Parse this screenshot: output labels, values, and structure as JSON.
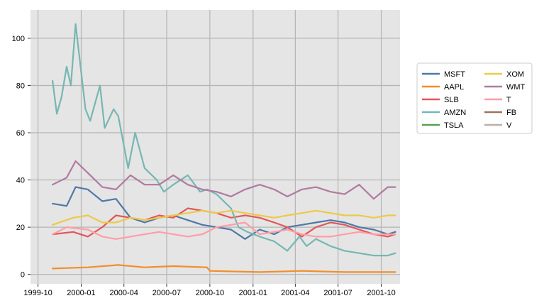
{
  "chart_data": {
    "type": "line",
    "title": "",
    "xlabel": "",
    "ylabel": "",
    "x_ticks": [
      "1999-10",
      "2000-01",
      "2000-04",
      "2000-07",
      "2000-10",
      "2001-01",
      "2001-04",
      "2001-07",
      "2001-10"
    ],
    "y_ticks": [
      0,
      20,
      40,
      60,
      80,
      100
    ],
    "xlim": [
      "1999-09-15",
      "2001-11-10"
    ],
    "ylim": [
      -4,
      112
    ],
    "grid": true,
    "legend": {
      "placement": "right",
      "columns": 2
    },
    "series": [
      {
        "name": "MSFT",
        "color": "#4e79a7",
        "x": [
          "1999-11-01",
          "1999-12-01",
          "1999-12-20",
          "2000-01-15",
          "2000-02-15",
          "2000-03-15",
          "2000-04-15",
          "2000-05-15",
          "2000-06-15",
          "2000-07-15",
          "2000-08-15",
          "2000-09-15",
          "2000-10-15",
          "2000-11-15",
          "2000-12-15",
          "2001-01-15",
          "2001-02-15",
          "2001-03-15",
          "2001-04-15",
          "2001-05-15",
          "2001-06-15",
          "2001-07-15",
          "2001-08-15",
          "2001-09-15",
          "2001-10-15",
          "2001-10-31"
        ],
        "values": [
          30,
          29,
          37,
          36,
          31,
          32,
          24,
          22,
          24,
          25,
          23,
          21,
          20,
          19,
          15,
          19,
          17,
          20,
          21,
          22,
          23,
          22,
          20,
          19,
          17,
          18
        ]
      },
      {
        "name": "AAPL",
        "color": "#f28e2b",
        "x": [
          "1999-11-01",
          "2000-01-15",
          "2000-03-20",
          "2000-05-15",
          "2000-07-15",
          "2000-09-25",
          "2000-10-01",
          "2001-01-15",
          "2001-04-15",
          "2001-07-15",
          "2001-10-31"
        ],
        "values": [
          2.5,
          3,
          4,
          3,
          3.5,
          3,
          1.5,
          1,
          1.5,
          1,
          1
        ]
      },
      {
        "name": "SLB",
        "color": "#e15759",
        "x": [
          "1999-11-01",
          "1999-12-15",
          "2000-01-15",
          "2000-02-15",
          "2000-03-15",
          "2000-04-15",
          "2000-05-15",
          "2000-06-15",
          "2000-07-15",
          "2000-08-15",
          "2000-09-15",
          "2000-10-15",
          "2000-11-15",
          "2000-12-15",
          "2001-01-15",
          "2001-02-15",
          "2001-03-15",
          "2001-04-15",
          "2001-05-15",
          "2001-06-15",
          "2001-07-15",
          "2001-08-15",
          "2001-09-15",
          "2001-10-15",
          "2001-10-31"
        ],
        "values": [
          17,
          18,
          16,
          20,
          25,
          24,
          23,
          25,
          24,
          28,
          27,
          26,
          24,
          25,
          24,
          22,
          20,
          16,
          20,
          22,
          21,
          19,
          17,
          16,
          17
        ]
      },
      {
        "name": "AMZN",
        "color": "#76b7b2",
        "x": [
          "1999-11-01",
          "1999-11-10",
          "1999-11-20",
          "1999-12-01",
          "1999-12-10",
          "1999-12-20",
          "2000-01-10",
          "2000-01-20",
          "2000-02-10",
          "2000-02-20",
          "2000-03-10",
          "2000-03-20",
          "2000-04-10",
          "2000-04-25",
          "2000-05-15",
          "2000-06-10",
          "2000-06-25",
          "2000-07-15",
          "2000-08-15",
          "2000-09-10",
          "2000-09-25",
          "2000-10-15",
          "2000-11-15",
          "2000-12-01",
          "2000-12-20",
          "2001-01-15",
          "2001-02-15",
          "2001-03-15",
          "2001-04-10",
          "2001-04-25",
          "2001-05-15",
          "2001-06-15",
          "2001-07-15",
          "2001-08-15",
          "2001-09-15",
          "2001-10-15",
          "2001-10-31"
        ],
        "values": [
          82,
          68,
          75,
          88,
          80,
          106,
          70,
          65,
          80,
          62,
          70,
          67,
          45,
          60,
          45,
          40,
          35,
          38,
          42,
          35,
          36,
          34,
          28,
          20,
          18,
          16,
          14,
          10,
          16,
          12,
          15,
          12,
          10,
          9,
          8,
          8,
          9
        ]
      },
      {
        "name": "TSLA",
        "color": "#59a14f",
        "x": [],
        "values": []
      },
      {
        "name": "XOM",
        "color": "#edc948",
        "x": [
          "1999-11-01",
          "1999-12-15",
          "2000-01-15",
          "2000-02-15",
          "2000-03-15",
          "2000-04-15",
          "2000-05-15",
          "2000-06-15",
          "2000-07-15",
          "2000-08-15",
          "2000-09-15",
          "2000-10-15",
          "2000-11-15",
          "2000-12-15",
          "2001-01-15",
          "2001-02-15",
          "2001-03-15",
          "2001-04-15",
          "2001-05-15",
          "2001-06-15",
          "2001-07-15",
          "2001-08-15",
          "2001-09-15",
          "2001-10-15",
          "2001-10-31"
        ],
        "values": [
          21,
          24,
          25,
          22,
          22,
          24,
          23,
          24,
          25,
          26,
          27,
          26,
          27,
          26,
          25,
          24,
          25,
          26,
          27,
          26,
          25,
          25,
          24,
          25,
          25
        ]
      },
      {
        "name": "WMT",
        "color": "#b07aa1",
        "x": [
          "1999-11-01",
          "1999-12-01",
          "1999-12-20",
          "2000-01-15",
          "2000-02-15",
          "2000-03-15",
          "2000-04-15",
          "2000-05-15",
          "2000-06-15",
          "2000-07-15",
          "2000-08-15",
          "2000-09-15",
          "2000-10-15",
          "2000-11-15",
          "2000-12-15",
          "2001-01-15",
          "2001-02-15",
          "2001-03-15",
          "2001-04-15",
          "2001-05-15",
          "2001-06-15",
          "2001-07-15",
          "2001-08-15",
          "2001-09-15",
          "2001-10-15",
          "2001-10-31"
        ],
        "values": [
          38,
          41,
          48,
          43,
          37,
          36,
          42,
          38,
          38,
          42,
          38,
          36,
          35,
          33,
          36,
          38,
          36,
          33,
          36,
          37,
          35,
          34,
          38,
          32,
          37,
          37
        ]
      },
      {
        "name": "T",
        "color": "#ff9da7",
        "x": [
          "1999-11-01",
          "1999-12-01",
          "2000-01-15",
          "2000-02-15",
          "2000-03-15",
          "2000-04-15",
          "2000-05-15",
          "2000-06-15",
          "2000-07-15",
          "2000-08-15",
          "2000-09-15",
          "2000-10-15",
          "2000-11-15",
          "2000-12-15",
          "2001-01-15",
          "2001-02-15",
          "2001-03-15",
          "2001-04-15",
          "2001-05-15",
          "2001-06-15",
          "2001-07-15",
          "2001-08-15",
          "2001-09-15",
          "2001-10-15",
          "2001-10-31"
        ],
        "values": [
          17,
          20,
          19,
          16,
          15,
          16,
          17,
          18,
          17,
          16,
          17,
          20,
          21,
          22,
          17,
          18,
          19,
          17,
          16,
          16,
          17,
          18,
          17,
          17,
          17
        ]
      },
      {
        "name": "FB",
        "color": "#9c755f",
        "x": [],
        "values": []
      },
      {
        "name": "V",
        "color": "#bab0ac",
        "x": [],
        "values": []
      }
    ]
  }
}
